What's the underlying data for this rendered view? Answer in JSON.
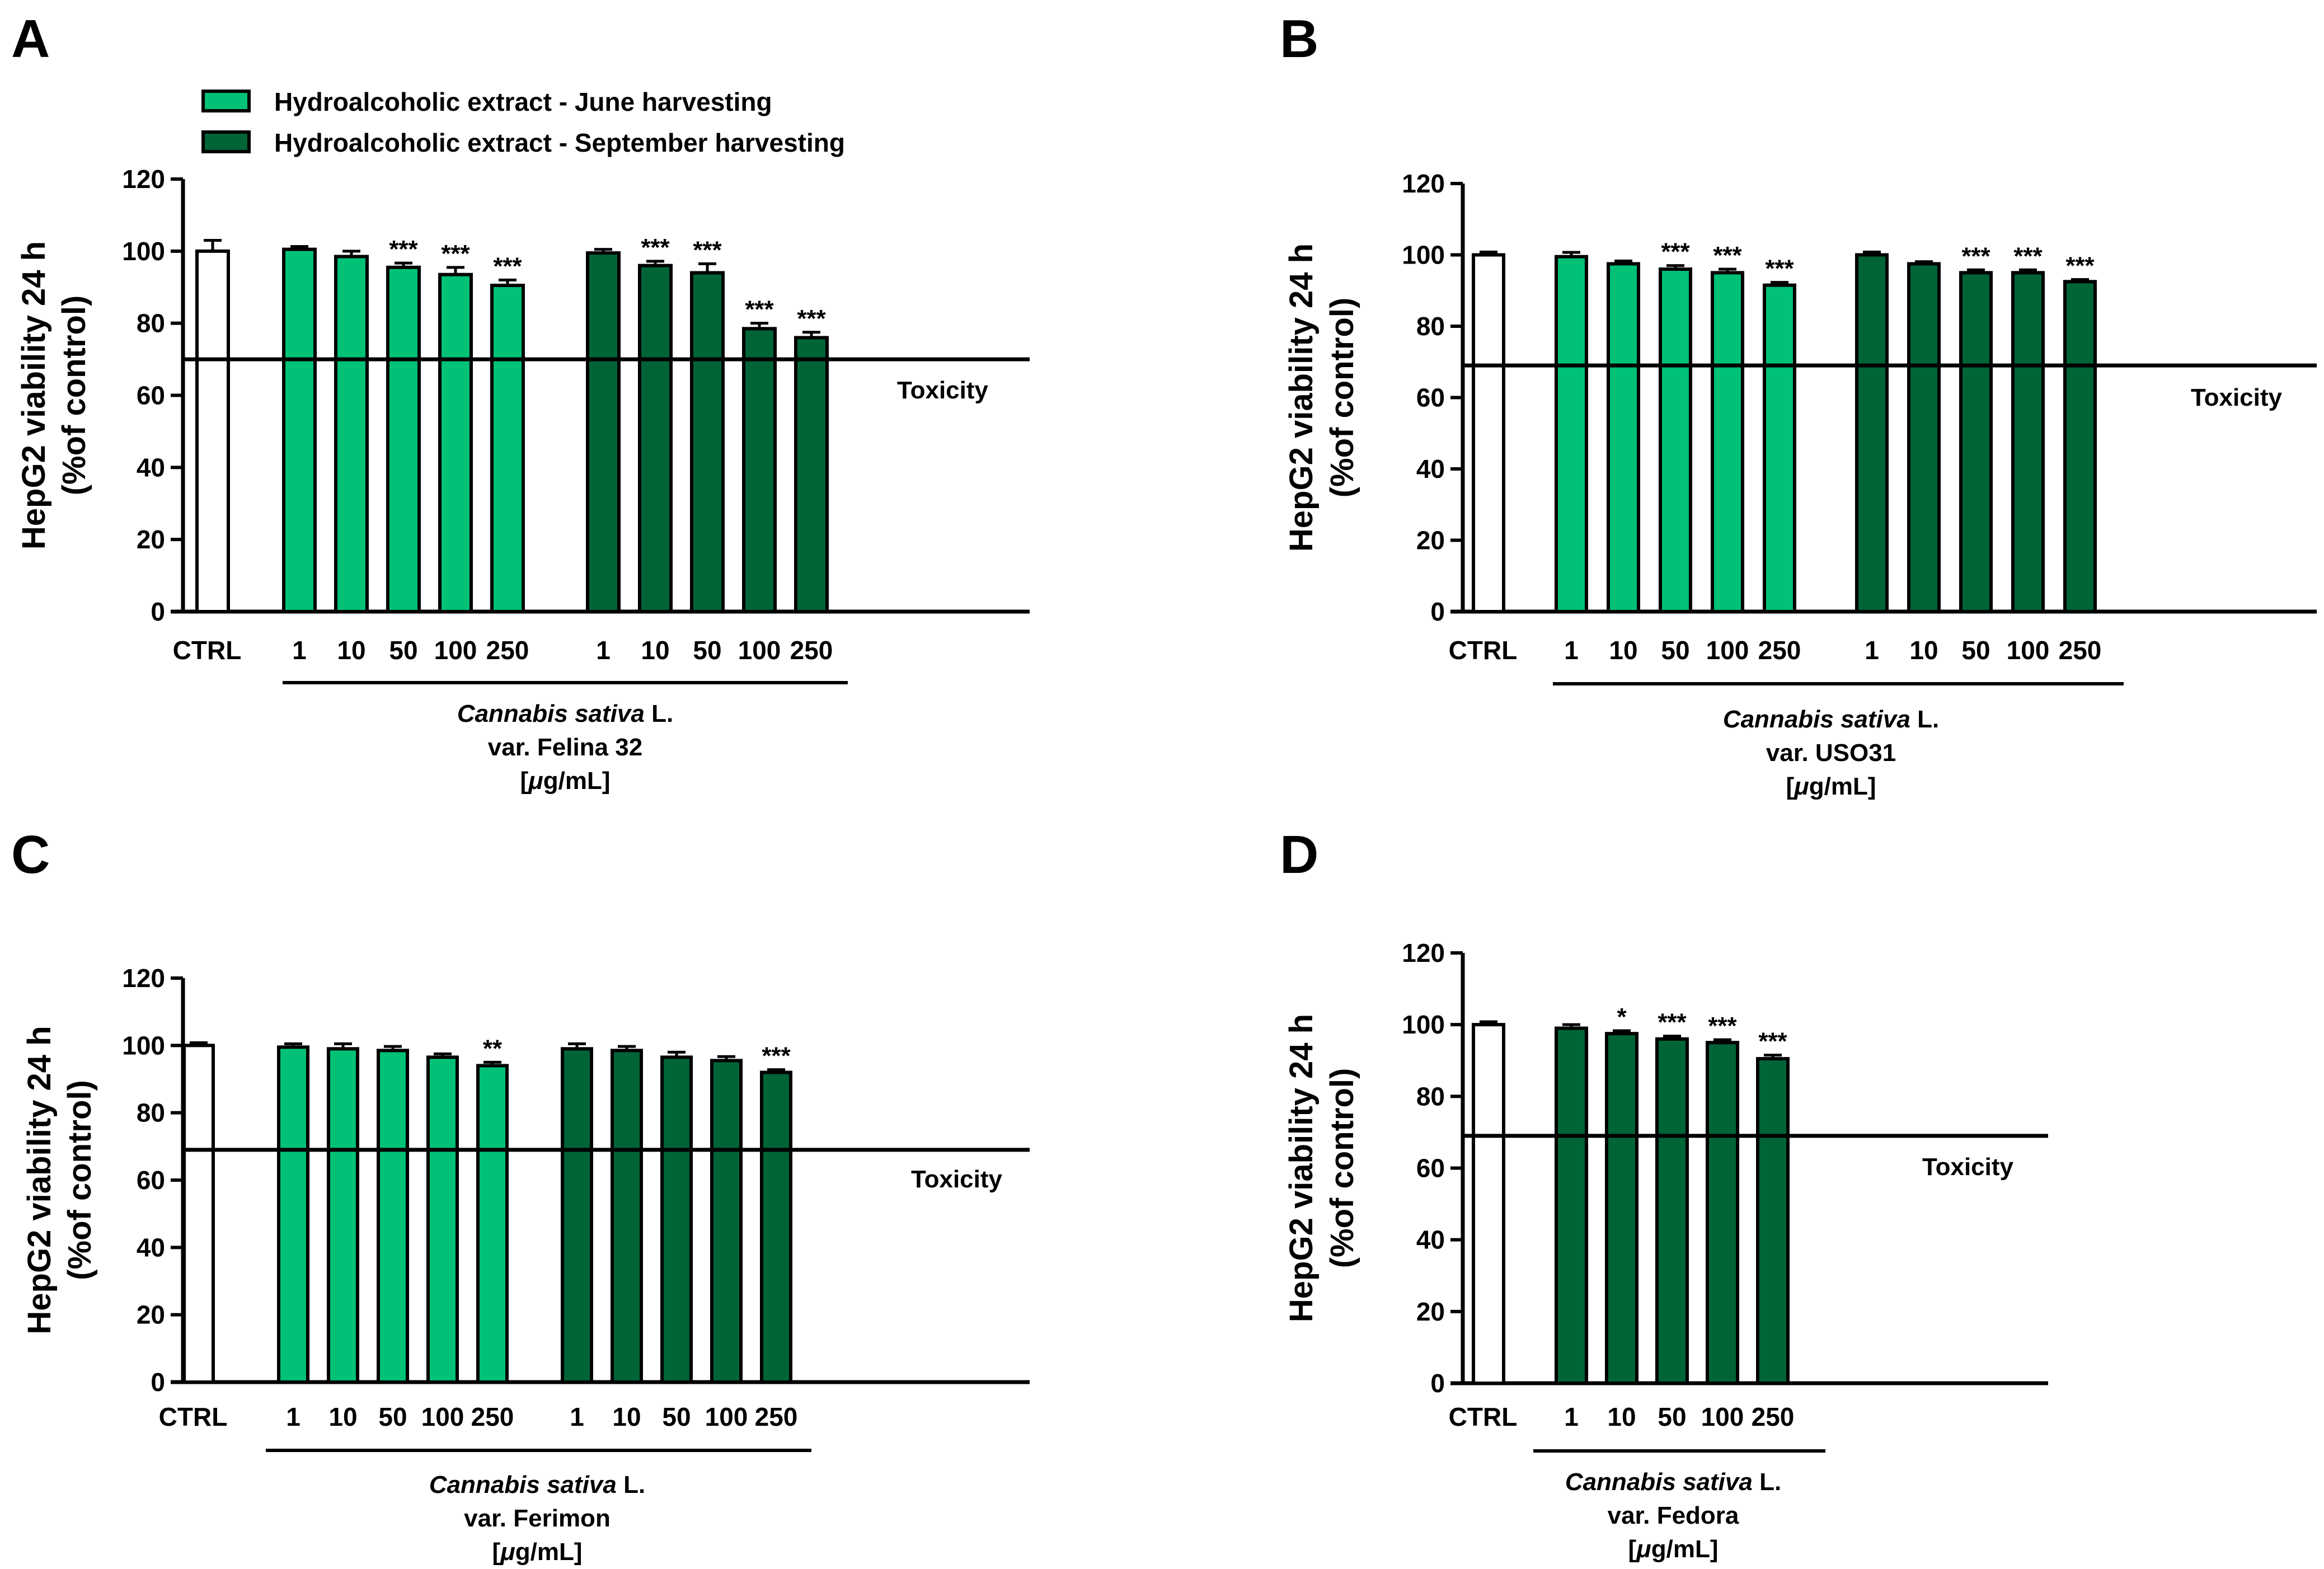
{
  "colors": {
    "june": "#00C176",
    "september": "#006437",
    "control": "#FFFFFF",
    "axis": "#000000"
  },
  "legend": {
    "june_label": "Hydroalcoholic extract - June harvesting",
    "september_label": "Hydroalcoholic extract  - September harvesting"
  },
  "chart_data": [
    {
      "panel": "A",
      "type": "bar",
      "ylabel_line1": "HepG2 viability 24 h",
      "ylabel_line2": "(%of control)",
      "ylim": [
        0,
        120
      ],
      "yticks": [
        "0",
        "20",
        "40",
        "60",
        "80",
        "100",
        "120"
      ],
      "toxicity_threshold": 70,
      "toxicity_label": "Toxicity",
      "control": {
        "label": "CTRL",
        "value": 100,
        "error": 3.0
      },
      "series": [
        {
          "name": "Hydroalcoholic extract - June harvesting",
          "color_key": "june",
          "categories": [
            "1",
            "10",
            "50",
            "100",
            "250"
          ],
          "values": [
            100.5,
            98.5,
            95.5,
            93.5,
            90.5
          ],
          "errors": [
            0.8,
            1.5,
            1.2,
            2.0,
            1.5
          ],
          "significance": [
            "",
            "",
            "***",
            "***",
            "***"
          ]
        },
        {
          "name": "Hydroalcoholic extract - September harvesting",
          "color_key": "september",
          "categories": [
            "1",
            "10",
            "50",
            "100",
            "250"
          ],
          "values": [
            99.5,
            96.0,
            94.0,
            78.5,
            76.0
          ],
          "errors": [
            1.0,
            1.2,
            2.5,
            1.5,
            1.5
          ],
          "significance": [
            "",
            "***",
            "***",
            "***",
            "***"
          ]
        }
      ],
      "group_label_italic": "Cannabis sativa",
      "group_label_suffix": " L.",
      "group_label_line2": "var. Felina 32",
      "group_label_unit_mu": "μ",
      "group_label_unit": "g/mL"
    },
    {
      "panel": "B",
      "type": "bar",
      "ylabel_line1": "HepG2 viability 24 h",
      "ylabel_line2": "(%of control)",
      "ylim": [
        0,
        120
      ],
      "yticks": [
        "0",
        "20",
        "40",
        "60",
        "80",
        "100",
        "120"
      ],
      "toxicity_threshold": 69,
      "toxicity_label": "Toxicity",
      "control": {
        "label": "CTRL",
        "value": 100,
        "error": 0.8
      },
      "series": [
        {
          "name": "Hydroalcoholic extract - June harvesting",
          "color_key": "june",
          "categories": [
            "1",
            "10",
            "50",
            "100",
            "250"
          ],
          "values": [
            99.5,
            97.5,
            96.0,
            95.0,
            91.5
          ],
          "errors": [
            1.2,
            0.8,
            1.0,
            1.0,
            0.8
          ],
          "significance": [
            "",
            "",
            "***",
            "***",
            "***"
          ]
        },
        {
          "name": "Hydroalcoholic extract - September harvesting",
          "color_key": "september",
          "categories": [
            "1",
            "10",
            "50",
            "100",
            "250"
          ],
          "values": [
            100.0,
            97.5,
            95.0,
            95.0,
            92.5
          ],
          "errors": [
            0.8,
            0.6,
            0.8,
            0.8,
            0.6
          ],
          "significance": [
            "",
            "",
            "***",
            "***",
            "***"
          ]
        }
      ],
      "group_label_italic": "Cannabis sativa",
      "group_label_suffix": " L.",
      "group_label_line2": "var. USO31",
      "group_label_unit_mu": "μ",
      "group_label_unit": "g/mL"
    },
    {
      "panel": "C",
      "type": "bar",
      "ylabel_line1": "HepG2 viability 24 h",
      "ylabel_line2": "(%of control)",
      "ylim": [
        0,
        120
      ],
      "yticks": [
        "0",
        "20",
        "40",
        "60",
        "80",
        "100",
        "120"
      ],
      "toxicity_threshold": 69,
      "toxicity_label": "Toxicity",
      "control": {
        "label": "CTRL",
        "value": 100,
        "error": 0.8
      },
      "series": [
        {
          "name": "Hydroalcoholic extract - June harvesting",
          "color_key": "june",
          "categories": [
            "1",
            "10",
            "50",
            "100",
            "250"
          ],
          "values": [
            99.5,
            99.0,
            98.5,
            96.5,
            94.0
          ],
          "errors": [
            1.0,
            1.5,
            1.2,
            1.0,
            1.0
          ],
          "significance": [
            "",
            "",
            "",
            "",
            "**"
          ]
        },
        {
          "name": "Hydroalcoholic extract - September harvesting",
          "color_key": "september",
          "categories": [
            "1",
            "10",
            "50",
            "100",
            "250"
          ],
          "values": [
            99.0,
            98.5,
            96.5,
            95.5,
            92.0
          ],
          "errors": [
            1.5,
            1.2,
            1.5,
            1.2,
            0.8
          ],
          "significance": [
            "",
            "",
            "",
            "",
            "***"
          ]
        }
      ],
      "group_label_italic": "Cannabis sativa",
      "group_label_suffix": " L.",
      "group_label_line2": "var. Ferimon",
      "group_label_unit_mu": "μ",
      "group_label_unit": "g/mL"
    },
    {
      "panel": "D",
      "type": "bar",
      "ylabel_line1": "HepG2 viability 24 h",
      "ylabel_line2": "(%of control)",
      "ylim": [
        0,
        120
      ],
      "yticks": [
        "0",
        "20",
        "40",
        "60",
        "80",
        "100",
        "120"
      ],
      "toxicity_threshold": 69,
      "toxicity_label": "Toxicity",
      "control": {
        "label": "CTRL",
        "value": 100,
        "error": 0.8
      },
      "series": [
        {
          "name": "Hydroalcoholic extract - September harvesting",
          "color_key": "september",
          "categories": [
            "1",
            "10",
            "50",
            "100",
            "250"
          ],
          "values": [
            99.0,
            97.5,
            96.0,
            95.0,
            90.5
          ],
          "errors": [
            1.0,
            0.8,
            0.8,
            0.8,
            1.0
          ],
          "significance": [
            "",
            "*",
            "***",
            "***",
            "***"
          ]
        }
      ],
      "group_label_italic": "Cannabis sativa",
      "group_label_suffix": " L.",
      "group_label_line2": "var. Fedora",
      "group_label_unit_mu": "μ",
      "group_label_unit": "g/mL"
    }
  ]
}
